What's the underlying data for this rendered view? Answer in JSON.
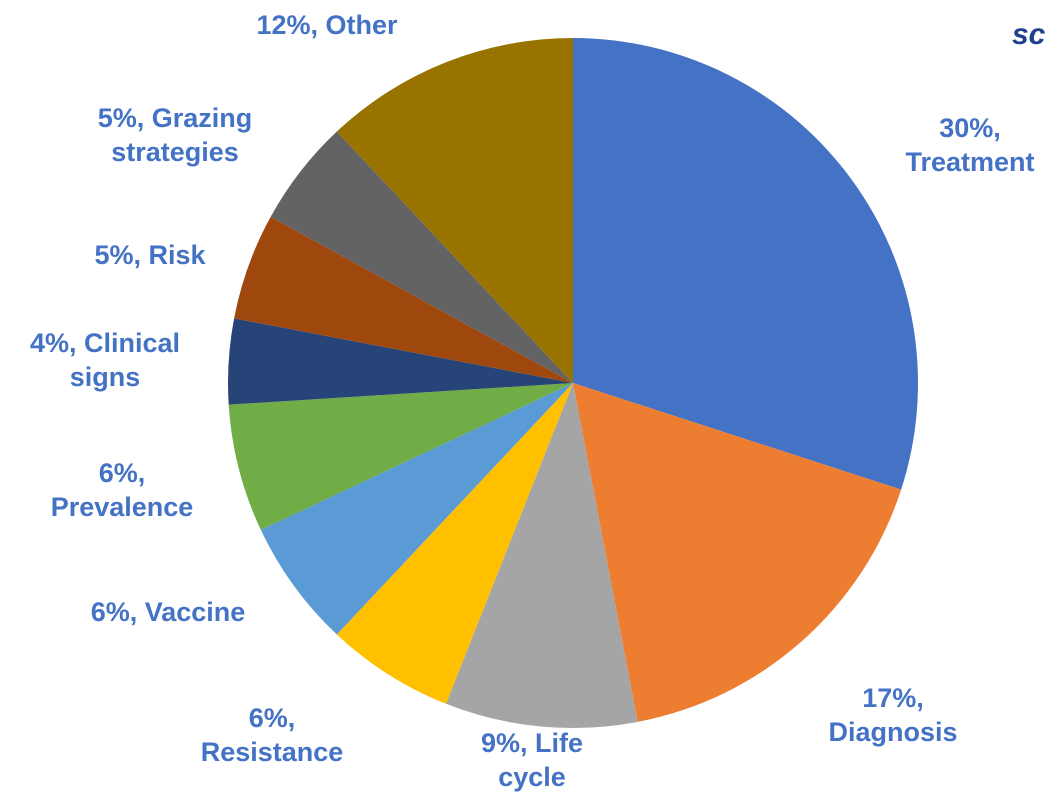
{
  "chart_data": {
    "type": "pie",
    "values": [
      30,
      17,
      9,
      6,
      6,
      6,
      4,
      5,
      5,
      12
    ],
    "value_labels": [
      "30%, Treatment",
      "17%, Diagnosis",
      "9%, Life cycle",
      "6%, Resistance",
      "6%, Vaccine",
      "6%, Prevalence",
      "4%, Clinical signs",
      "5%, Risk",
      "5%, Grazing strategies",
      "12%, Other"
    ],
    "colors": [
      "#4472c4",
      "#ed7d31",
      "#a5a5a5",
      "#ffc000",
      "#5b9bd5",
      "#70ad47",
      "#264478",
      "#9e480e",
      "#636363",
      "#997300"
    ],
    "logo_text": "sc"
  }
}
